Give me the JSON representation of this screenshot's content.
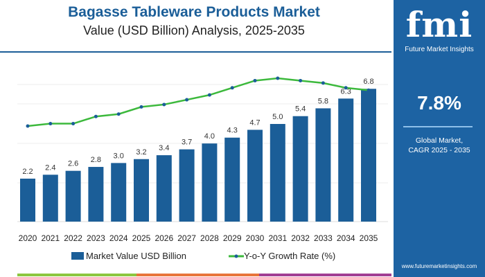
{
  "header": {
    "title": "Bagasse Tableware Products Market",
    "subtitle": "Value (USD Billion) Analysis, 2025-2035"
  },
  "panel": {
    "logo": "fmi",
    "logo_sub": "Future Market Insights",
    "cagr": "7.8%",
    "label_line1": "Global Market,",
    "label_line2": "CAGR 2025 - 2035",
    "url": "www.futuremarketinsights.com"
  },
  "colors": {
    "bar": "#1b5e98",
    "line": "#3cb93c",
    "marker": "#1b5e98",
    "panel": "#1d63a3",
    "strip": [
      "#8cc63f",
      "#e8743b",
      "#a23e93"
    ]
  },
  "chart_data": {
    "type": "bar+line",
    "title": "Bagasse Tableware Products Market",
    "subtitle": "Value (USD Billion) Analysis, 2025-2035",
    "categories": [
      "2020",
      "2021",
      "2022",
      "2023",
      "2024",
      "2025",
      "2026",
      "2027",
      "2028",
      "2029",
      "2030",
      "2031",
      "2032",
      "2033",
      "2034",
      "2035"
    ],
    "series": [
      {
        "name": "Market Value USD Billion",
        "type": "bar",
        "values": [
          2.2,
          2.4,
          2.6,
          2.8,
          3.0,
          3.2,
          3.4,
          3.7,
          4.0,
          4.3,
          4.7,
          5.0,
          5.4,
          5.8,
          6.3,
          6.8
        ],
        "labels": [
          "2.2",
          "2.4",
          "2.6",
          "2.8",
          "3.0",
          "3.2",
          "3.4",
          "3.7",
          "4.0",
          "4.3",
          "4.7",
          "5.0",
          "5.4",
          "5.8",
          "6.3",
          "6.8"
        ]
      },
      {
        "name": "Y-o-Y Growth Rate (%)",
        "type": "line",
        "values": [
          6.0,
          6.1,
          6.1,
          6.4,
          6.5,
          6.8,
          6.9,
          7.1,
          7.3,
          7.6,
          7.9,
          8.0,
          7.9,
          7.8,
          7.6,
          7.5
        ],
        "estimated": true
      }
    ],
    "grid": true,
    "legend": "bottom"
  }
}
